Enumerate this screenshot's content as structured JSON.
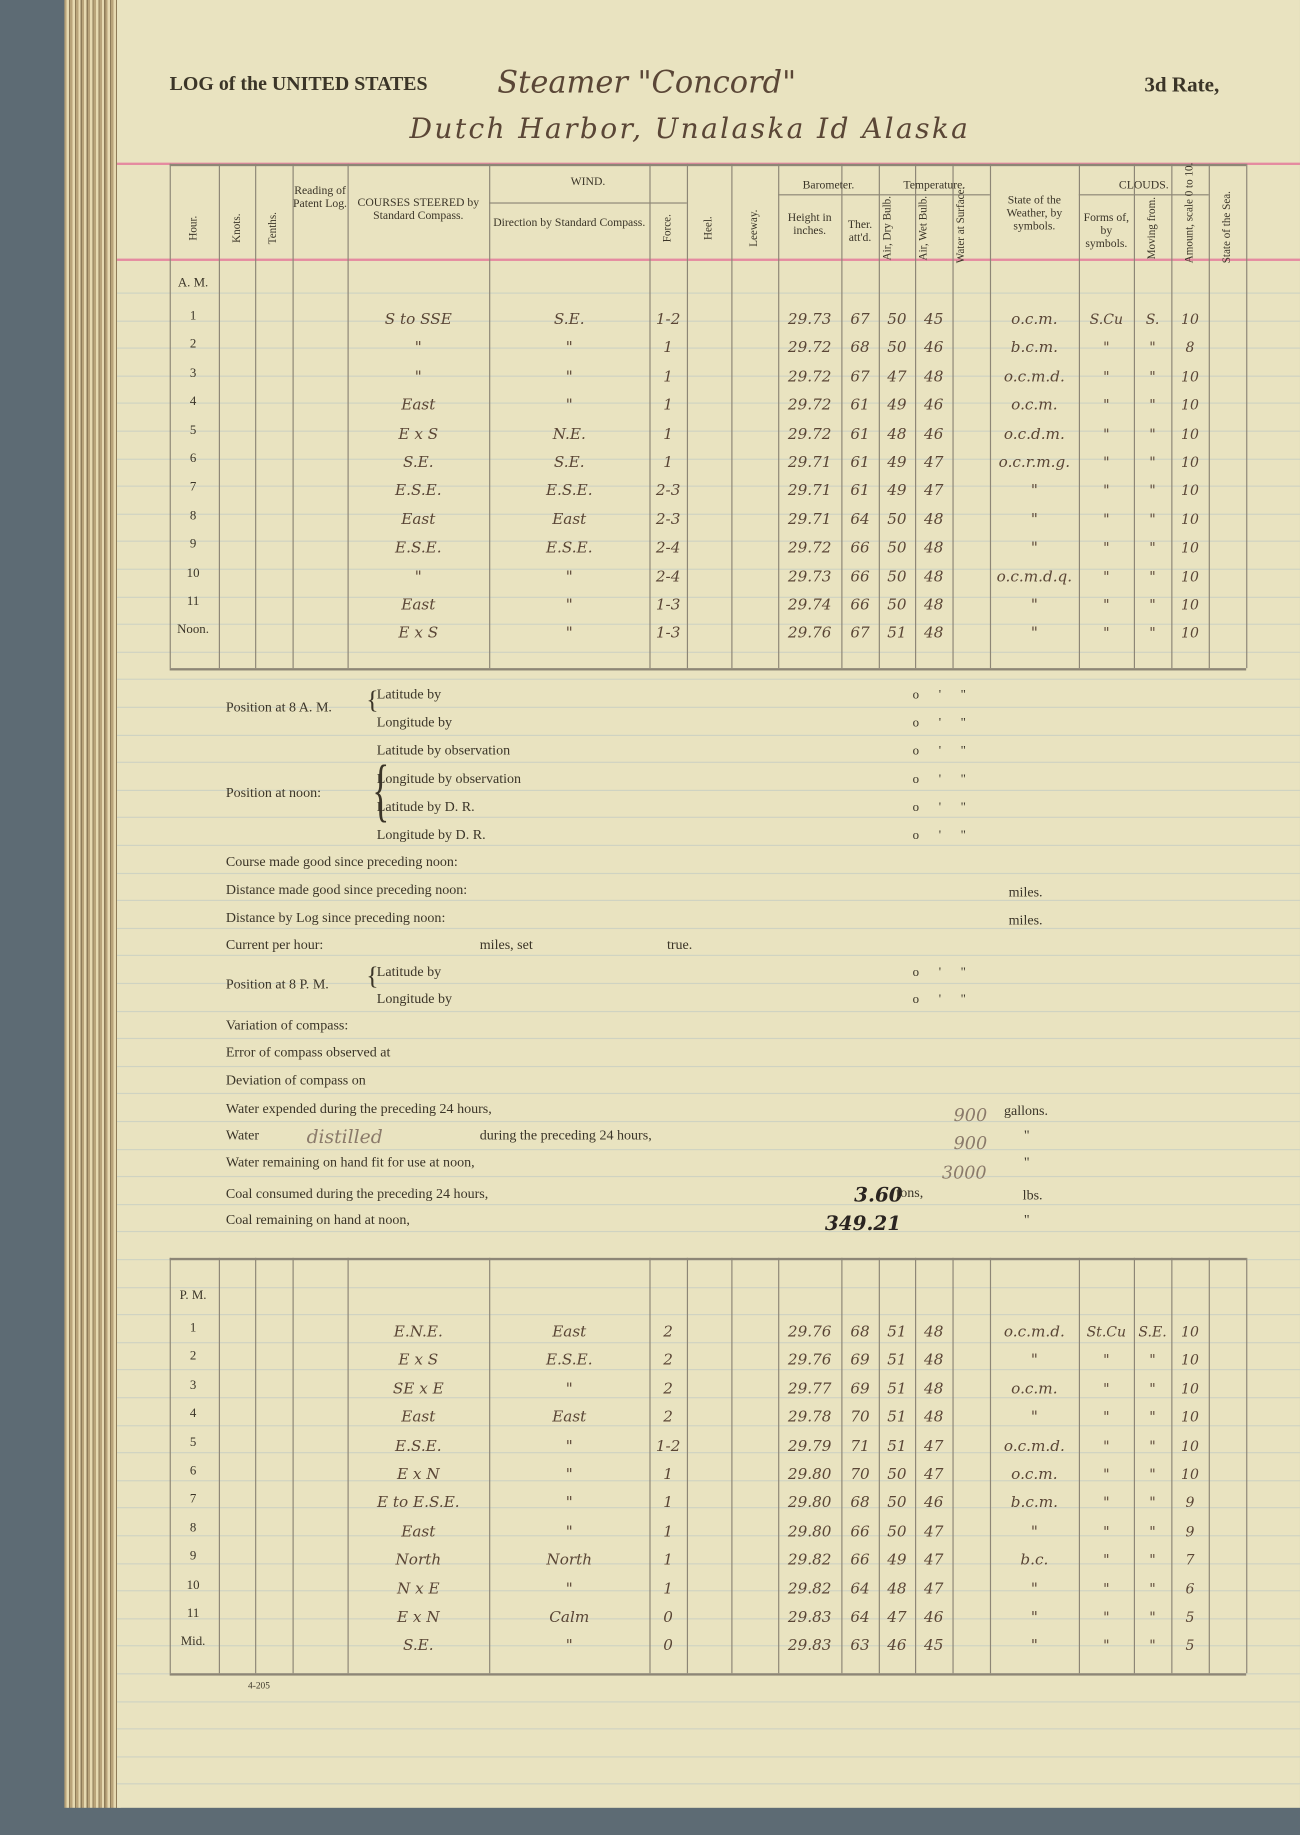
{
  "header": {
    "title_print": "LOG of the UNITED STATES",
    "vessel": "Steamer \"Concord\"",
    "rate": "3d Rate,",
    "location": "Dutch Harbor, Unalaska Id Alaska"
  },
  "columns": {
    "hour": "Hour.",
    "knots": "Knots.",
    "tenths": "Tenths.",
    "patent_log": "Reading of Patent Log.",
    "courses": "COURSES STEERED by Standard Compass.",
    "wind": "WIND.",
    "wind_direction": "Direction by Standard Compass.",
    "force": "Force.",
    "heel": "Heel.",
    "leeway": "Leeway.",
    "barometer": "Barometer.",
    "height": "Height in inches.",
    "ther": "Ther. att'd.",
    "temperature": "Temperature.",
    "air_dry": "Air, Dry Bulb.",
    "air_wet": "Air, Wet Bulb.",
    "water": "Water at Surface.",
    "weather": "State of the Weather, by symbols.",
    "clouds": "CLOUDS.",
    "forms": "Forms of, by symbols.",
    "moving": "Moving from.",
    "amount": "Amount, scale 0 to 10.",
    "sea": "State of the Sea."
  },
  "am": {
    "label": "A. M.",
    "rows": [
      [
        "1",
        "S to SSE",
        "S.E.",
        "1-2",
        "29.73",
        "67",
        "50",
        "45",
        "o.c.m.",
        "S.Cu",
        "S.",
        "10"
      ],
      [
        "2",
        "\"",
        "\"",
        "1",
        "29.72",
        "68",
        "50",
        "46",
        "b.c.m.",
        "\"",
        "\"",
        "8"
      ],
      [
        "3",
        "\"",
        "\"",
        "1",
        "29.72",
        "67",
        "47",
        "48",
        "o.c.m.d.",
        "\"",
        "\"",
        "10"
      ],
      [
        "4",
        "East",
        "\"",
        "1",
        "29.72",
        "61",
        "49",
        "46",
        "o.c.m.",
        "\"",
        "\"",
        "10"
      ],
      [
        "5",
        "E x S",
        "N.E.",
        "1",
        "29.72",
        "61",
        "48",
        "46",
        "o.c.d.m.",
        "\"",
        "\"",
        "10"
      ],
      [
        "6",
        "S.E.",
        "S.E.",
        "1",
        "29.71",
        "61",
        "49",
        "47",
        "o.c.r.m.g.",
        "\"",
        "\"",
        "10"
      ],
      [
        "7",
        "E.S.E.",
        "E.S.E.",
        "2-3",
        "29.71",
        "61",
        "49",
        "47",
        "\"",
        "\"",
        "\"",
        "10"
      ],
      [
        "8",
        "East",
        "East",
        "2-3",
        "29.71",
        "64",
        "50",
        "48",
        "\"",
        "\"",
        "\"",
        "10"
      ],
      [
        "9",
        "E.S.E.",
        "E.S.E.",
        "2-4",
        "29.72",
        "66",
        "50",
        "48",
        "\"",
        "\"",
        "\"",
        "10"
      ],
      [
        "10",
        "\"",
        "\"",
        "2-4",
        "29.73",
        "66",
        "50",
        "48",
        "o.c.m.d.q.",
        "\"",
        "\"",
        "10"
      ],
      [
        "11",
        "East",
        "\"",
        "1-3",
        "29.74",
        "66",
        "50",
        "48",
        "\"",
        "\"",
        "\"",
        "10"
      ],
      [
        "Noon.",
        "E x S",
        "\"",
        "1-3",
        "29.76",
        "67",
        "51",
        "48",
        "\"",
        "\"",
        "\"",
        "10"
      ]
    ]
  },
  "pm": {
    "label": "P. M.",
    "rows": [
      [
        "1",
        "E.N.E.",
        "East",
        "2",
        "29.76",
        "68",
        "51",
        "48",
        "o.c.m.d.",
        "St.Cu",
        "S.E.",
        "10"
      ],
      [
        "2",
        "E x S",
        "E.S.E.",
        "2",
        "29.76",
        "69",
        "51",
        "48",
        "\"",
        "\"",
        "\"",
        "10"
      ],
      [
        "3",
        "SE x E",
        "\"",
        "2",
        "29.77",
        "69",
        "51",
        "48",
        "o.c.m.",
        "\"",
        "\"",
        "10"
      ],
      [
        "4",
        "East",
        "East",
        "2",
        "29.78",
        "70",
        "51",
        "48",
        "\"",
        "\"",
        "\"",
        "10"
      ],
      [
        "5",
        "E.S.E.",
        "\"",
        "1-2",
        "29.79",
        "71",
        "51",
        "47",
        "o.c.m.d.",
        "\"",
        "\"",
        "10"
      ],
      [
        "6",
        "E x N",
        "\"",
        "1",
        "29.80",
        "70",
        "50",
        "47",
        "o.c.m.",
        "\"",
        "\"",
        "10"
      ],
      [
        "7",
        "E to E.S.E.",
        "\"",
        "1",
        "29.80",
        "68",
        "50",
        "46",
        "b.c.m.",
        "\"",
        "\"",
        "9"
      ],
      [
        "8",
        "East",
        "\"",
        "1",
        "29.80",
        "66",
        "50",
        "47",
        "\"",
        "\"",
        "\"",
        "9"
      ],
      [
        "9",
        "North",
        "North",
        "1",
        "29.82",
        "66",
        "49",
        "47",
        "b.c.",
        "\"",
        "\"",
        "7"
      ],
      [
        "10",
        "N x E",
        "\"",
        "1",
        "29.82",
        "64",
        "48",
        "47",
        "\"",
        "\"",
        "\"",
        "6"
      ],
      [
        "11",
        "E x N",
        "Calm",
        "0",
        "29.83",
        "64",
        "47",
        "46",
        "\"",
        "\"",
        "\"",
        "5"
      ],
      [
        "Mid.",
        "S.E.",
        "\"",
        "0",
        "29.83",
        "63",
        "46",
        "45",
        "\"",
        "\"",
        "\"",
        "5"
      ]
    ]
  },
  "positions": {
    "pos8am": "Position at 8 A. M.",
    "pos_noon": "Position at noon:",
    "pos8pm": "Position at 8 P. M.",
    "lat_by": "Latitude by",
    "lon_by": "Longitude by",
    "lat_obs": "Latitude by observation",
    "lon_obs": "Longitude by observation",
    "lat_dr": "Latitude by D. R.",
    "lon_dr": "Longitude by D. R.",
    "dms": "o   '   \""
  },
  "summary": {
    "course_made": "Course made good since preceding noon:",
    "distance_made": "Distance made good since preceding noon:",
    "distance_log": "Distance by Log since preceding noon:",
    "miles": "miles.",
    "current": "Current per hour:",
    "miles_set": "miles, set",
    "true": "true.",
    "variation": "Variation of compass:",
    "error": "Error of compass observed at",
    "deviation": "Deviation of compass on",
    "water_expended": "Water expended during the preceding 24 hours,",
    "water_expended_value": "900",
    "gallons": "gallons.",
    "water_label": "Water",
    "water_kind": "distilled",
    "water_during": "during the preceding 24 hours,",
    "water_distilled_value": "900",
    "water_remaining": "Water remaining on hand fit for use at noon,",
    "water_remaining_value": "3000",
    "coal_consumed": "Coal consumed during the preceding 24 hours,",
    "coal_consumed_value": "3.60",
    "tons": "tons,",
    "lbs": "lbs.",
    "coal_remaining": "Coal remaining on hand at noon,",
    "coal_remaining_value": "349.21",
    "ditto": "\""
  },
  "footer": {
    "form_number": "4-205"
  }
}
